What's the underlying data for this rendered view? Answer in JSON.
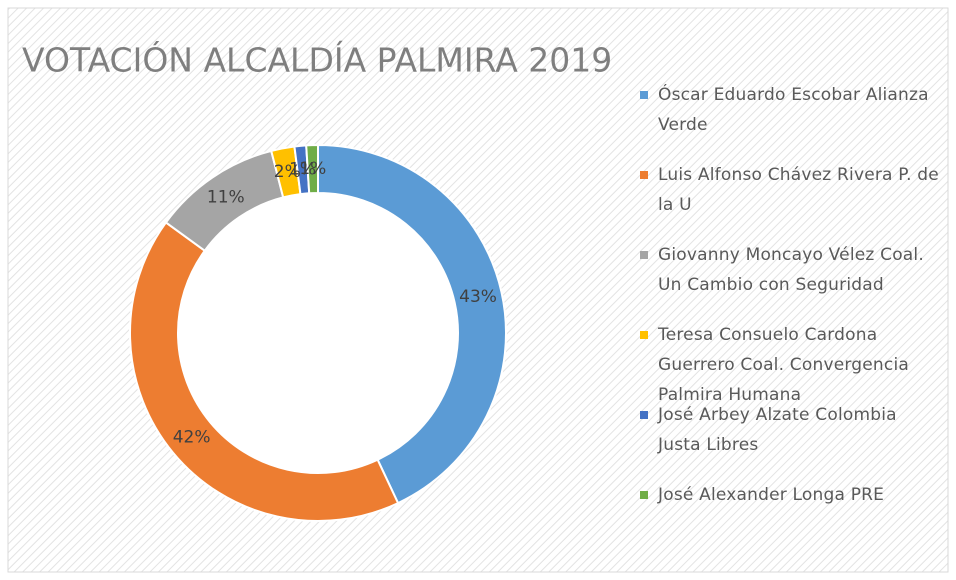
{
  "chart_data": {
    "type": "donut",
    "title": "VOTACIÓN ALCALDÍA PALMIRA 2019",
    "categories": [
      "Óscar Eduardo Escobar Alianza Verde",
      "Luis Alfonso Chávez Rivera P. de la U",
      "Giovanny Moncayo Vélez Coal. Un Cambio con Seguridad",
      "Teresa Consuelo Cardona Guerrero Coal. Convergencia Palmira Humana",
      "José Arbey Alzate Colombia Justa Libres",
      "José Alexander Longa PRE"
    ],
    "values": [
      43,
      42,
      11,
      2,
      1,
      1
    ],
    "value_labels": [
      "43%",
      "42%",
      "11%",
      "2%",
      "1%",
      "1%"
    ],
    "colors": [
      "#5b9bd5",
      "#ed7d31",
      "#a5a5a5",
      "#ffc000",
      "#4472c4",
      "#70ad47"
    ]
  }
}
